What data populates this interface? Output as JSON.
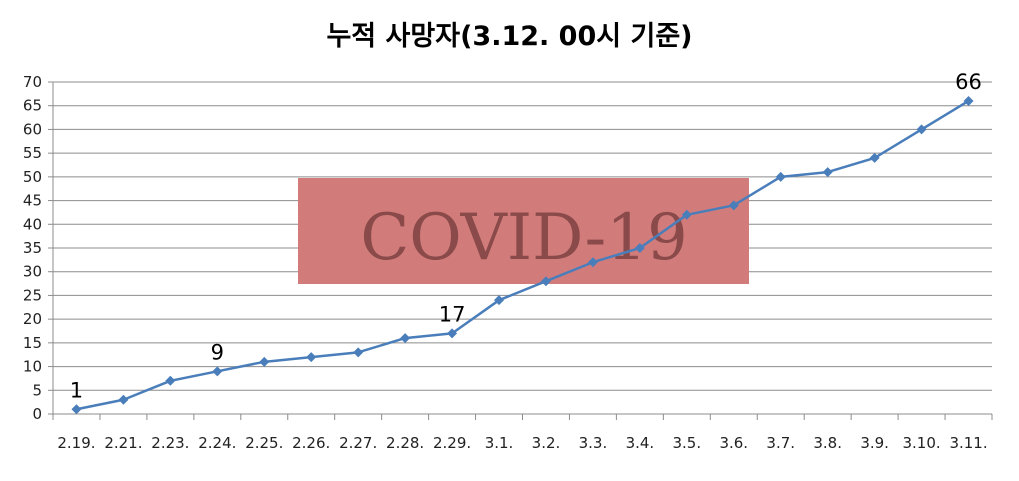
{
  "chart_data": {
    "type": "line",
    "title": "누적 사망자(3.12. 00시 기준)",
    "categories": [
      "2.19.",
      "2.21.",
      "2.23.",
      "2.24.",
      "2.25.",
      "2.26.",
      "2.27.",
      "2.28.",
      "2.29.",
      "3.1.",
      "3.2.",
      "3.3.",
      "3.4.",
      "3.5.",
      "3.6.",
      "3.7.",
      "3.8.",
      "3.9.",
      "3.10.",
      "3.11."
    ],
    "series": [
      {
        "values": [
          1,
          3,
          7,
          9,
          11,
          12,
          13,
          16,
          17,
          24,
          28,
          32,
          35,
          42,
          44,
          50,
          51,
          54,
          60,
          66
        ],
        "color": "#4a7ebb"
      }
    ],
    "data_labels": [
      {
        "index": 0,
        "text": "1"
      },
      {
        "index": 3,
        "text": "9"
      },
      {
        "index": 8,
        "text": "17"
      },
      {
        "index": 19,
        "text": "66"
      }
    ],
    "ylim": [
      0,
      70
    ],
    "yticks": [
      0,
      5,
      10,
      15,
      20,
      25,
      30,
      35,
      40,
      45,
      50,
      55,
      60,
      65,
      70
    ],
    "grid": true,
    "xlabel": "",
    "ylabel": ""
  },
  "watermark": {
    "text": "COVID-19",
    "background": "#d27b7b",
    "text_color": "#8a4a4a"
  }
}
